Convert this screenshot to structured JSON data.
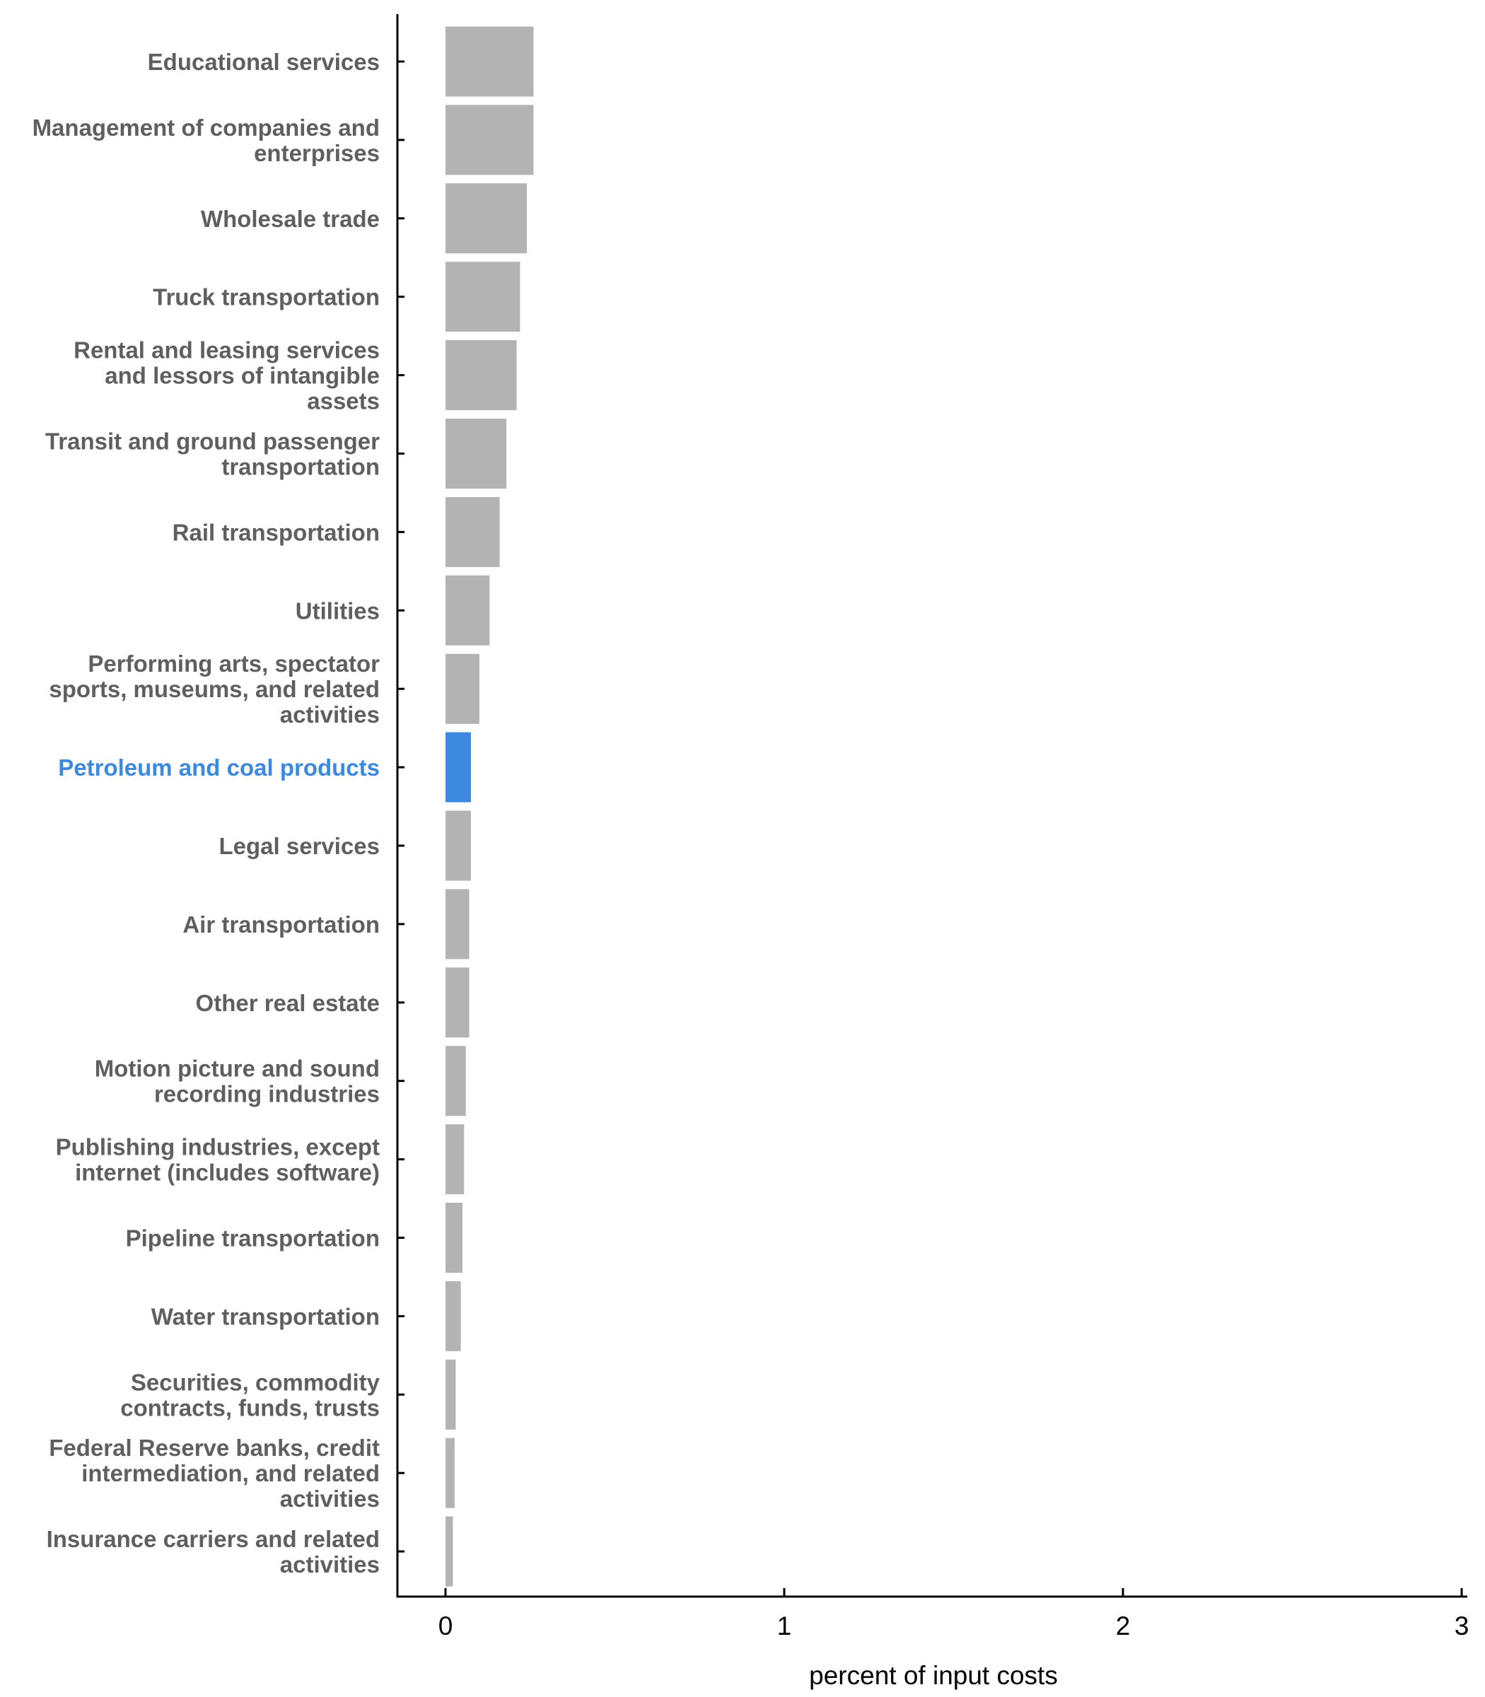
{
  "chart_data": {
    "type": "bar",
    "orientation": "horizontal",
    "title": "",
    "xlabel": "percent of input costs",
    "ylabel": "",
    "xlim": [
      0,
      3
    ],
    "xticks": [
      0,
      1,
      2,
      3
    ],
    "xtick_labels": [
      "0",
      "1",
      "2",
      "3"
    ],
    "grid": false,
    "categories": [
      "Educational services",
      "Management of companies and enterprises",
      "Wholesale trade",
      "Truck transportation",
      "Rental and leasing services and lessors of intangible assets",
      "Transit and ground passenger transportation",
      "Rail transportation",
      "Utilities",
      "Performing arts, spectator sports, museums, and related activities",
      "Petroleum and coal products",
      "Legal services",
      "Air transportation",
      "Other real estate",
      "Motion picture and sound recording industries",
      "Publishing industries, except internet (includes software)",
      "Pipeline transportation",
      "Water transportation",
      "Securities, commodity contracts, funds, trusts",
      "Federal Reserve banks, credit intermediation, and related activities",
      "Insurance carriers and related activities"
    ],
    "label_lines": [
      [
        "Educational services"
      ],
      [
        "Management of companies and",
        "enterprises"
      ],
      [
        "Wholesale trade"
      ],
      [
        "Truck transportation"
      ],
      [
        "Rental and leasing services",
        "and lessors of intangible",
        "assets"
      ],
      [
        "Transit and ground passenger",
        "transportation"
      ],
      [
        "Rail transportation"
      ],
      [
        "Utilities"
      ],
      [
        "Performing arts, spectator",
        "sports, museums, and related",
        "activities"
      ],
      [
        "Petroleum and coal products"
      ],
      [
        "Legal services"
      ],
      [
        "Air transportation"
      ],
      [
        "Other real estate"
      ],
      [
        "Motion picture and sound",
        "recording industries"
      ],
      [
        "Publishing industries, except",
        "internet (includes software)"
      ],
      [
        "Pipeline transportation"
      ],
      [
        "Water transportation"
      ],
      [
        "Securities, commodity",
        "contracts, funds, trusts"
      ],
      [
        "Federal Reserve banks, credit",
        "intermediation, and related",
        "activities"
      ],
      [
        "Insurance carriers and related",
        "activities"
      ]
    ],
    "values": [
      0.26,
      0.26,
      0.24,
      0.22,
      0.21,
      0.18,
      0.16,
      0.13,
      0.1,
      0.075,
      0.075,
      0.07,
      0.07,
      0.06,
      0.055,
      0.05,
      0.045,
      0.03,
      0.027,
      0.022
    ],
    "highlight_index": 9,
    "colors": {
      "bar": "#b3b3b3",
      "highlight": "#3d89e0",
      "label": "#5f5f5f",
      "axis": "#000000"
    }
  }
}
